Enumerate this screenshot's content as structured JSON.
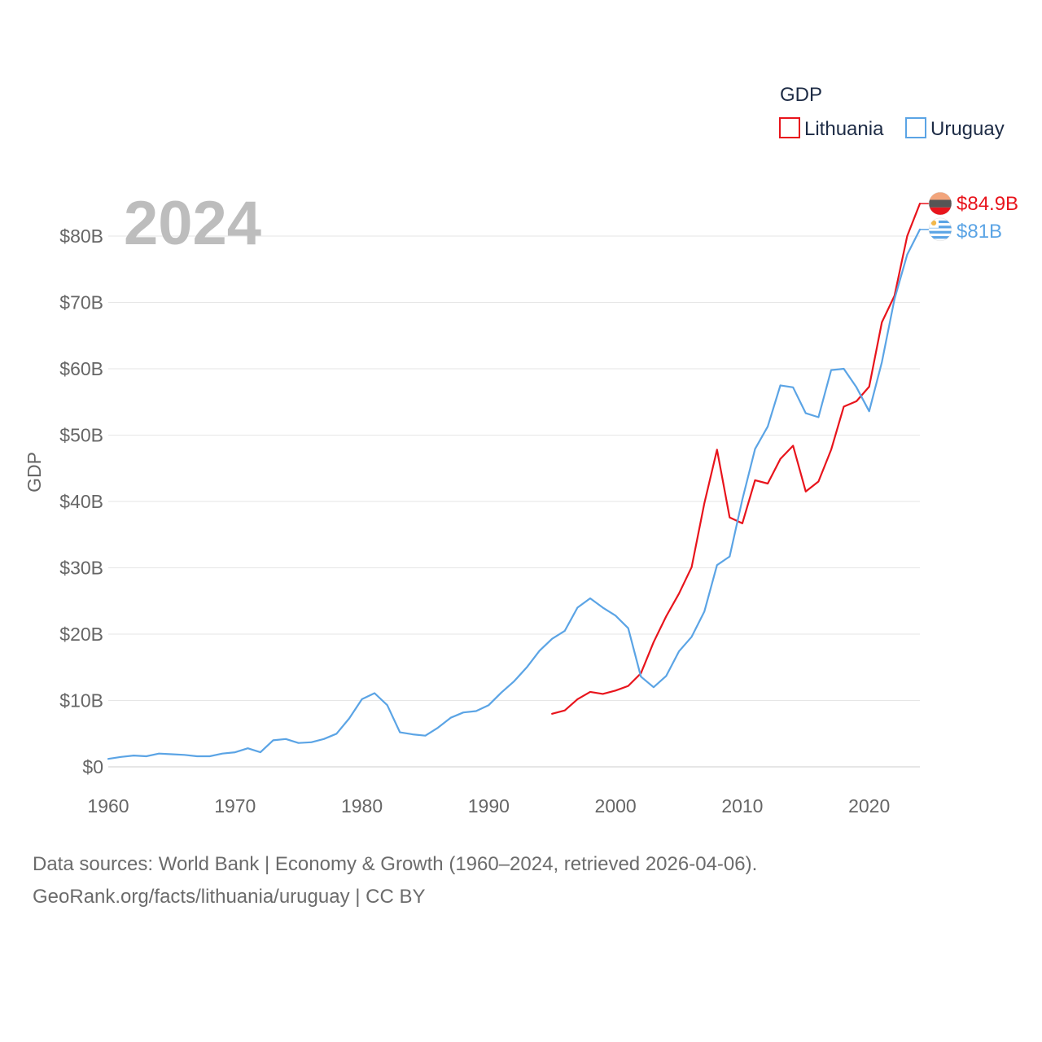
{
  "chart_data": {
    "type": "line",
    "title": "",
    "year_label": "2024",
    "ylabel": "GDP",
    "xlabel": "",
    "legend_title": "GDP",
    "xlim": [
      1960,
      2024
    ],
    "ylim": [
      0,
      80000000000
    ],
    "x_ticks": [
      "1960",
      "1970",
      "1980",
      "1990",
      "2000",
      "2010",
      "2020"
    ],
    "y_ticks": [
      "$0",
      "$10B",
      "$20B",
      "$30B",
      "$40B",
      "$50B",
      "$60B",
      "$70B",
      "$80B"
    ],
    "series": [
      {
        "name": "Lithuania",
        "color": "#e8141c",
        "end_label": "$84.9B",
        "flag": "lithuania-flag-icon",
        "x": [
          1995,
          1996,
          1997,
          1998,
          1999,
          2000,
          2001,
          2002,
          2003,
          2004,
          2005,
          2006,
          2007,
          2008,
          2009,
          2010,
          2011,
          2012,
          2013,
          2014,
          2015,
          2016,
          2017,
          2018,
          2019,
          2020,
          2021,
          2022,
          2023,
          2024
        ],
        "values": [
          8.0,
          8.5,
          10.2,
          11.3,
          11.0,
          11.5,
          12.2,
          14.1,
          18.8,
          22.7,
          26.1,
          30.1,
          39.7,
          47.8,
          37.6,
          36.7,
          43.2,
          42.7,
          46.4,
          48.4,
          41.5,
          43.0,
          47.8,
          54.3,
          55.1,
          57.3,
          67.0,
          71.0,
          80.0,
          84.9
        ]
      },
      {
        "name": "Uruguay",
        "color": "#5ba4e5",
        "end_label": "$81B",
        "flag": "uruguay-flag-icon",
        "x": [
          1960,
          1961,
          1962,
          1963,
          1964,
          1965,
          1966,
          1967,
          1968,
          1969,
          1970,
          1971,
          1972,
          1973,
          1974,
          1975,
          1976,
          1977,
          1978,
          1979,
          1980,
          1981,
          1982,
          1983,
          1984,
          1985,
          1986,
          1987,
          1988,
          1989,
          1990,
          1991,
          1992,
          1993,
          1994,
          1995,
          1996,
          1997,
          1998,
          1999,
          2000,
          2001,
          2002,
          2003,
          2004,
          2005,
          2006,
          2007,
          2008,
          2009,
          2010,
          2011,
          2012,
          2013,
          2014,
          2015,
          2016,
          2017,
          2018,
          2019,
          2020,
          2021,
          2022,
          2023,
          2024
        ],
        "values": [
          1.2,
          1.5,
          1.7,
          1.6,
          2.0,
          1.9,
          1.8,
          1.6,
          1.6,
          2.0,
          2.2,
          2.8,
          2.2,
          4.0,
          4.2,
          3.6,
          3.7,
          4.2,
          5.0,
          7.3,
          10.2,
          11.1,
          9.3,
          5.2,
          4.9,
          4.7,
          5.9,
          7.4,
          8.2,
          8.4,
          9.3,
          11.2,
          12.9,
          15.0,
          17.5,
          19.3,
          20.5,
          24.0,
          25.4,
          24.0,
          22.8,
          20.9,
          13.6,
          12.0,
          13.7,
          17.4,
          19.6,
          23.4,
          30.4,
          31.7,
          40.3,
          47.9,
          51.3,
          57.5,
          57.2,
          53.3,
          52.7,
          59.8,
          60.0,
          57.2,
          53.6,
          61.0,
          70.5,
          77.2,
          81.0
        ]
      }
    ]
  },
  "footer": {
    "line1": "Data sources: World Bank | Economy & Growth (1960–2024, retrieved 2026-04-06).",
    "line2": "GeoRank.org/facts/lithuania/uruguay | CC BY"
  }
}
